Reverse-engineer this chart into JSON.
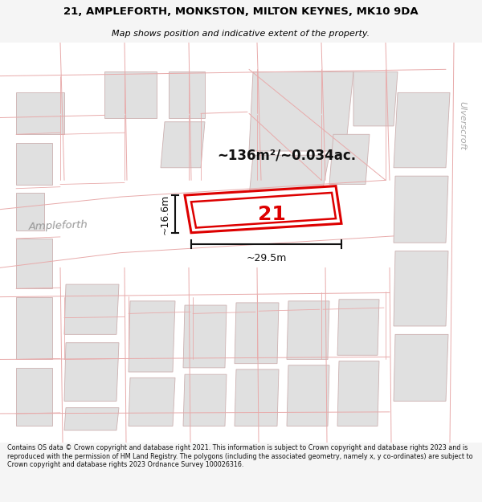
{
  "title_line1": "21, AMPLEFORTH, MONKSTON, MILTON KEYNES, MK10 9DA",
  "title_line2": "Map shows position and indicative extent of the property.",
  "area_text": "~136m²/~0.034ac.",
  "plot_number": "21",
  "dim_width": "~29.5m",
  "dim_height": "~16.6m",
  "street_label": "Ampleforth",
  "corner_label": "Ulverscroft",
  "footer_text": "Contains OS data © Crown copyright and database right 2021. This information is subject to Crown copyright and database rights 2023 and is reproduced with the permission of HM Land Registry. The polygons (including the associated geometry, namely x, y co-ordinates) are subject to Crown copyright and database rights 2023 Ordnance Survey 100026316.",
  "bg_color": "#f5f5f5",
  "map_bg": "#ffffff",
  "road_outline_color": "#e8aaaa",
  "building_color": "#e0e0e0",
  "building_edge_color": "#ccb0b0",
  "plot_line_color": "#dd0000",
  "dim_line_color": "#111111",
  "title_color": "#000000",
  "footer_color": "#111111",
  "street_color": "#aaaaaa",
  "area_text_color": "#111111"
}
